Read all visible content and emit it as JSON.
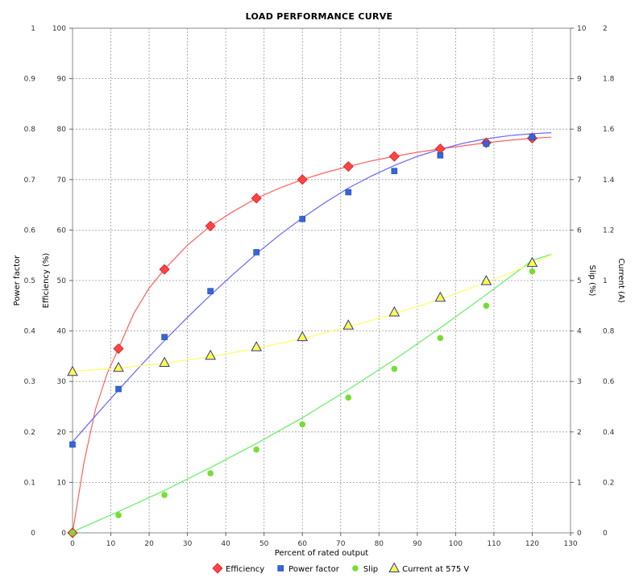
{
  "chart_data": {
    "type": "line",
    "title": "LOAD PERFORMANCE CURVE",
    "xlabel": "Percent of rated output",
    "xlim": [
      0,
      130
    ],
    "x_ticks": [
      0,
      10,
      20,
      30,
      40,
      50,
      60,
      70,
      80,
      90,
      100,
      110,
      120,
      130
    ],
    "grid": true,
    "legend_position": "bottom-center",
    "axes": {
      "power_factor": {
        "label": "Power factor",
        "lim": [
          0,
          1
        ],
        "ticks": [
          "0",
          "0.1",
          "0.2",
          "0.3",
          "0.4",
          "0.5",
          "0.6",
          "0.7",
          "0.8",
          "0.9",
          "1"
        ]
      },
      "efficiency": {
        "label": "Efficiency (%)",
        "lim": [
          0,
          100
        ],
        "ticks": [
          "0",
          "10",
          "20",
          "30",
          "40",
          "50",
          "60",
          "70",
          "80",
          "90",
          "100"
        ]
      },
      "slip": {
        "label": "Slip (%)",
        "lim": [
          0,
          10
        ],
        "ticks": [
          "0",
          "1",
          "2",
          "3",
          "4",
          "5",
          "6",
          "7",
          "8",
          "9",
          "10"
        ]
      },
      "current": {
        "label": "Current (A)",
        "lim": [
          0,
          2
        ],
        "ticks": [
          "0",
          "0.2",
          "0.4",
          "0.6",
          "0.8",
          "1",
          "1.2",
          "1.4",
          "1.6",
          "1.8",
          "2"
        ]
      }
    },
    "series": [
      {
        "name": "Efficiency",
        "axis": "efficiency",
        "color": "#ff4444",
        "line_color": "#ff6060",
        "marker": "diamond",
        "x": [
          0,
          12,
          24,
          36,
          48,
          60,
          72,
          84,
          96,
          108,
          120
        ],
        "y": [
          0,
          36.5,
          52.2,
          60.8,
          66.3,
          70.0,
          72.6,
          74.6,
          76.1,
          77.3,
          78.2
        ],
        "curve_x": [
          0,
          3,
          6,
          9,
          12,
          16,
          20,
          24,
          30,
          36,
          42,
          48,
          54,
          60,
          66,
          72,
          78,
          84,
          90,
          96,
          102,
          108,
          114,
          120,
          125
        ],
        "curve_y": [
          0,
          14,
          24.5,
          31.5,
          36.5,
          43.5,
          48.5,
          52.2,
          57,
          60.8,
          63.7,
          66.3,
          68.3,
          70.0,
          71.4,
          72.6,
          73.7,
          74.6,
          75.4,
          76.1,
          76.7,
          77.3,
          77.8,
          78.2,
          78.4
        ]
      },
      {
        "name": "Power factor",
        "axis": "power_factor",
        "color": "#3366dd",
        "line_color": "#6666ff",
        "marker": "square",
        "x": [
          0,
          12,
          24,
          36,
          48,
          60,
          72,
          84,
          96,
          108,
          120
        ],
        "y": [
          0.175,
          0.285,
          0.388,
          0.479,
          0.556,
          0.622,
          0.675,
          0.717,
          0.748,
          0.771,
          0.784
        ],
        "curve_x": [
          0,
          6,
          12,
          18,
          24,
          30,
          36,
          42,
          48,
          54,
          60,
          66,
          72,
          78,
          84,
          90,
          96,
          102,
          108,
          114,
          120,
          125
        ],
        "curve_y": [
          0.18,
          0.232,
          0.283,
          0.333,
          0.381,
          0.427,
          0.471,
          0.513,
          0.553,
          0.59,
          0.624,
          0.655,
          0.683,
          0.707,
          0.728,
          0.746,
          0.76,
          0.772,
          0.781,
          0.787,
          0.791,
          0.793
        ]
      },
      {
        "name": "Slip",
        "axis": "slip",
        "color": "#77dd33",
        "line_color": "#66ee66",
        "marker": "circle",
        "x": [
          0,
          12,
          24,
          36,
          48,
          60,
          72,
          84,
          96,
          108,
          120
        ],
        "y": [
          0,
          0.35,
          0.75,
          1.18,
          1.65,
          2.15,
          2.68,
          3.25,
          3.86,
          4.5,
          5.18
        ],
        "curve_x": [
          0,
          12,
          24,
          36,
          48,
          60,
          72,
          84,
          96,
          108,
          120,
          125
        ],
        "curve_y": [
          0.02,
          0.42,
          0.84,
          1.29,
          1.77,
          2.28,
          2.84,
          3.43,
          4.06,
          4.72,
          5.4,
          5.52
        ]
      },
      {
        "name": "Current at 575 V",
        "axis": "current",
        "color": "#ffff44",
        "line_color": "#ffff66",
        "marker": "triangle",
        "x": [
          0,
          12,
          24,
          36,
          48,
          60,
          72,
          84,
          96,
          108,
          120
        ],
        "y": [
          0.638,
          0.654,
          0.674,
          0.702,
          0.736,
          0.776,
          0.822,
          0.874,
          0.932,
          0.998,
          1.07
        ],
        "curve_x": [
          0,
          12,
          24,
          36,
          48,
          60,
          72,
          84,
          96,
          108,
          120,
          125
        ],
        "curve_y": [
          0.64,
          0.653,
          0.672,
          0.698,
          0.731,
          0.77,
          0.816,
          0.868,
          0.926,
          0.992,
          1.066,
          1.102
        ]
      }
    ]
  }
}
